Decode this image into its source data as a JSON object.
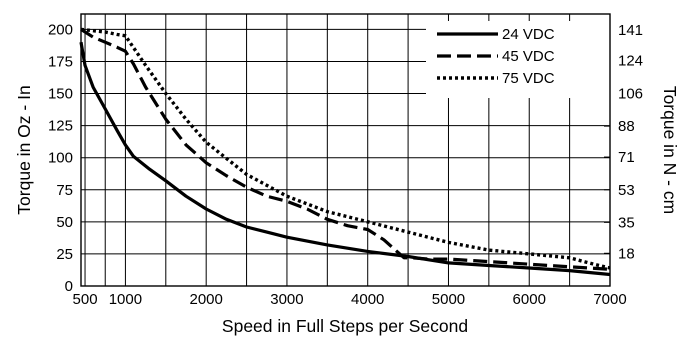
{
  "chart_data": {
    "type": "line",
    "title": "",
    "xlabel": "Speed in Full Steps per Second",
    "ylabel": "Torque in Oz - In",
    "y2label": "Torque in N - cm",
    "xlim": [
      450,
      7000
    ],
    "ylim": [
      0,
      212
    ],
    "grid": true,
    "legend_position": "top-right",
    "x_ticks": [
      500,
      1000,
      2000,
      3000,
      4000,
      5000,
      6000,
      7000
    ],
    "x_grid": [
      500,
      750,
      1000,
      1500,
      2000,
      2500,
      3000,
      3500,
      4000,
      4500,
      5000,
      5500,
      6000,
      6500,
      7000
    ],
    "y_ticks": [
      0,
      25,
      50,
      75,
      100,
      125,
      150,
      175,
      200
    ],
    "y2_ticks": [
      {
        "value": 18,
        "at": 25.5
      },
      {
        "value": 35,
        "at": 49.6
      },
      {
        "value": 53,
        "at": 75.0
      },
      {
        "value": 71,
        "at": 100.5
      },
      {
        "value": 88,
        "at": 124.6
      },
      {
        "value": 106,
        "at": 150.1
      },
      {
        "value": 124,
        "at": 175.6
      },
      {
        "value": 141,
        "at": 199.7
      }
    ],
    "series": [
      {
        "name": "24 VDC",
        "dash": "solid",
        "x": [
          450,
          500,
          600,
          750,
          900,
          1000,
          1100,
          1300,
          1500,
          1750,
          2000,
          2250,
          2500,
          2750,
          3000,
          3500,
          4000,
          4500,
          5000,
          5500,
          6000,
          6500,
          7000
        ],
        "y": [
          190,
          172,
          155,
          138,
          121,
          110,
          101,
          91,
          82,
          70,
          60,
          52,
          46,
          42,
          38,
          32,
          27,
          23,
          18,
          16,
          14,
          12,
          9
        ]
      },
      {
        "name": "45 VDC",
        "dash": "dashed",
        "x": [
          450,
          600,
          750,
          900,
          1000,
          1100,
          1250,
          1500,
          1750,
          2000,
          2250,
          2500,
          2750,
          3000,
          3250,
          3500,
          3750,
          4000,
          4200,
          4450,
          4550,
          4750,
          5000,
          5500,
          6000,
          6500,
          7000
        ],
        "y": [
          200,
          194,
          190,
          186,
          183,
          173,
          155,
          130,
          110,
          96,
          86,
          77,
          70,
          66,
          60,
          52,
          47,
          44,
          36,
          22,
          22,
          21,
          21,
          19,
          17,
          15,
          13
        ]
      },
      {
        "name": "75 VDC",
        "dash": "dotted",
        "x": [
          450,
          600,
          750,
          900,
          1000,
          1250,
          1500,
          1750,
          2000,
          2500,
          3000,
          3500,
          4000,
          4500,
          5000,
          5500,
          6000,
          6500,
          6800,
          7000
        ],
        "y": [
          200,
          199,
          198,
          196,
          195,
          172,
          150,
          130,
          112,
          87,
          70,
          58,
          50,
          42,
          34,
          28,
          25,
          22,
          17,
          14
        ]
      }
    ]
  }
}
